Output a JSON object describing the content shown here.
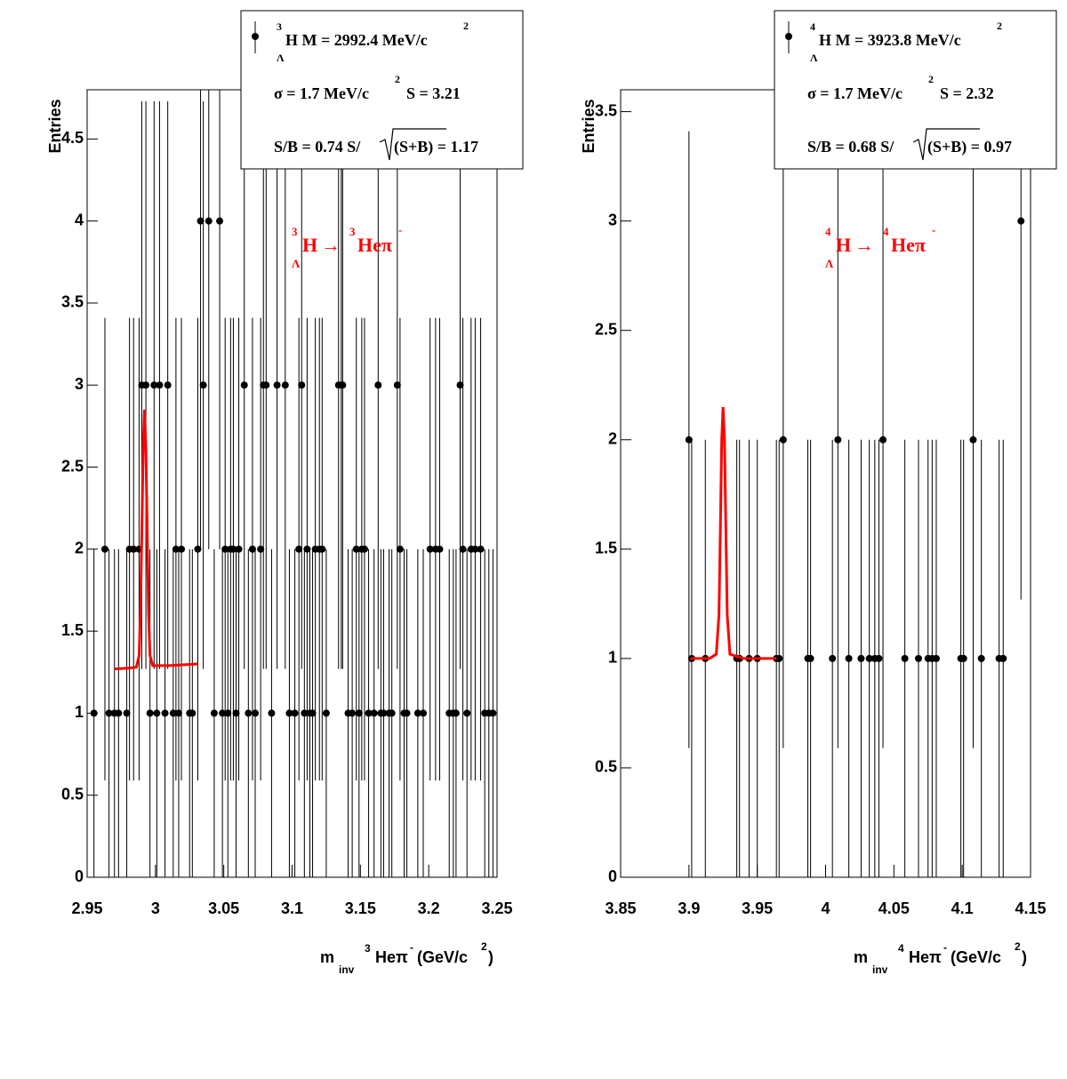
{
  "chart_data": [
    {
      "type": "errorbar",
      "ylabel": "Entries",
      "xlabel": [
        "m",
        "inv",
        "3",
        "Heπ",
        "-",
        "(GeV/c",
        "2",
        ")"
      ],
      "legend": [
        [
          "3",
          "H M = 2992.4 MeV/c",
          "2",
          "Λ"
        ],
        [
          "σ = 1.7 MeV/c",
          "2",
          "S = 3.21"
        ],
        [
          "S/B = 0.74  S/",
          "(S+B) = 1.17"
        ]
      ],
      "annotation": [
        "3",
        "H",
        "Λ",
        "→",
        "3",
        "Heπ",
        "-"
      ],
      "xlim": [
        2.95,
        3.25
      ],
      "ylim": [
        0,
        4.8
      ],
      "xticks": [
        2.95,
        3,
        3.05,
        3.1,
        3.15,
        3.2,
        3.25
      ],
      "yticks": [
        0,
        0.5,
        1,
        1.5,
        2,
        2.5,
        3,
        3.5,
        4,
        4.5
      ],
      "color": "#000000",
      "x": [
        2.955,
        2.963,
        2.966,
        2.97,
        2.973,
        2.979,
        2.981,
        2.984,
        2.988,
        2.99,
        2.993,
        2.996,
        2.999,
        3.001,
        3.003,
        3.007,
        3.009,
        3.013,
        3.015,
        3.017,
        3.019,
        3.025,
        3.027,
        3.031,
        3.033,
        3.035,
        3.039,
        3.043,
        3.047,
        3.049,
        3.051,
        3.053,
        3.055,
        3.057,
        3.059,
        3.061,
        3.065,
        3.068,
        3.071,
        3.073,
        3.077,
        3.079,
        3.081,
        3.085,
        3.089,
        3.095,
        3.098,
        3.102,
        3.105,
        3.107,
        3.109,
        3.111,
        3.113,
        3.115,
        3.117,
        3.12,
        3.122,
        3.125,
        3.134,
        3.136,
        3.137,
        3.141,
        3.144,
        3.147,
        3.149,
        3.151,
        3.153,
        3.156,
        3.16,
        3.163,
        3.165,
        3.167,
        3.171,
        3.173,
        3.177,
        3.179,
        3.182,
        3.184,
        3.192,
        3.196,
        3.201,
        3.205,
        3.208,
        3.215,
        3.218,
        3.22,
        3.223,
        3.225,
        3.228,
        3.231,
        3.234,
        3.238,
        3.241,
        3.244,
        3.247
      ],
      "values": [
        1,
        2,
        1,
        1,
        1,
        1,
        2,
        2,
        2,
        3,
        3,
        1,
        3,
        1,
        3,
        1,
        3,
        1,
        2,
        1,
        2,
        1,
        1,
        2,
        4,
        3,
        4,
        1,
        4,
        1,
        2,
        1,
        2,
        2,
        1,
        2,
        3,
        1,
        2,
        1,
        2,
        3,
        3,
        1,
        3,
        3,
        1,
        1,
        2,
        3,
        1,
        2,
        1,
        1,
        2,
        2,
        2,
        1,
        3,
        3,
        3,
        1,
        1,
        2,
        1,
        2,
        2,
        1,
        1,
        3,
        1,
        1,
        1,
        1,
        3,
        2,
        1,
        1,
        1,
        1,
        2,
        2,
        2,
        1,
        1,
        1,
        3,
        2,
        1,
        2,
        2,
        2,
        1,
        1,
        1
      ],
      "errors": [
        1,
        1.41,
        1,
        1,
        1,
        1,
        1.41,
        1.41,
        1.41,
        1.73,
        1.73,
        1,
        1.73,
        1,
        1.73,
        1,
        1.73,
        1,
        1.41,
        1,
        1.41,
        1,
        1,
        1.41,
        2,
        1.73,
        2,
        1,
        2,
        1,
        1.41,
        1,
        1.41,
        1.41,
        1,
        1.41,
        1.73,
        1,
        1.41,
        1,
        1.41,
        1.73,
        1.73,
        1,
        1.73,
        1.73,
        1,
        1,
        1.41,
        1.73,
        1,
        1.41,
        1,
        1,
        1.41,
        1.41,
        1.41,
        1,
        1.73,
        1.73,
        1.73,
        1,
        1,
        1.41,
        1,
        1.41,
        1.41,
        1,
        1,
        1.73,
        1,
        1,
        1,
        1,
        1.73,
        1.41,
        1,
        1,
        1,
        1,
        1.41,
        1.41,
        1.41,
        1,
        1,
        1,
        1.73,
        1.41,
        1,
        1.41,
        1.41,
        1.41,
        1,
        1,
        1
      ],
      "fit": {
        "color": "#ff0000",
        "x": [
          2.97,
          2.98,
          2.986,
          2.988,
          2.989,
          2.99,
          2.991,
          2.992,
          2.993,
          2.994,
          2.995,
          2.996,
          2.998,
          3.01,
          3.031
        ],
        "values": [
          1.27,
          1.275,
          1.28,
          1.35,
          1.6,
          2.1,
          2.6,
          2.85,
          2.6,
          2.1,
          1.6,
          1.35,
          1.29,
          1.29,
          1.3
        ]
      }
    },
    {
      "type": "errorbar",
      "ylabel": "Entries",
      "xlabel": [
        "m",
        "inv",
        "4",
        "Heπ",
        "-",
        "(GeV/c",
        "2",
        ")"
      ],
      "legend": [
        [
          "4",
          "H M = 3923.8 MeV/c",
          "2",
          "Λ"
        ],
        [
          "σ = 1.7 MeV/c",
          "2",
          "S = 2.32"
        ],
        [
          "S/B = 0.68  S/",
          "(S+B) = 0.97"
        ]
      ],
      "annotation": [
        "4",
        "H",
        "Λ",
        "→",
        "4",
        "Heπ",
        "-"
      ],
      "xlim": [
        3.85,
        4.15
      ],
      "ylim": [
        0,
        3.6
      ],
      "xticks": [
        3.85,
        3.9,
        3.95,
        4,
        4.05,
        4.1,
        4.15
      ],
      "yticks": [
        0,
        0.5,
        1,
        1.5,
        2,
        2.5,
        3,
        3.5
      ],
      "color": "#000000",
      "x": [
        3.9,
        3.902,
        3.912,
        3.935,
        3.937,
        3.944,
        3.95,
        3.964,
        3.966,
        3.969,
        3.987,
        3.989,
        4.005,
        4.009,
        4.017,
        4.026,
        4.032,
        4.036,
        4.039,
        4.042,
        4.058,
        4.068,
        4.075,
        4.078,
        4.081,
        4.099,
        4.101,
        4.108,
        4.114,
        4.127,
        4.13,
        4.143
      ],
      "values": [
        2,
        1,
        1,
        1,
        1,
        1,
        1,
        1,
        1,
        2,
        1,
        1,
        1,
        2,
        1,
        1,
        1,
        1,
        1,
        2,
        1,
        1,
        1,
        1,
        1,
        1,
        1,
        2,
        1,
        1,
        1,
        3
      ],
      "errors": [
        1.41,
        1,
        1,
        1,
        1,
        1,
        1,
        1,
        1,
        1.41,
        1,
        1,
        1,
        1.41,
        1,
        1,
        1,
        1,
        1,
        1.41,
        1,
        1,
        1,
        1,
        1,
        1,
        1,
        1.41,
        1,
        1,
        1,
        1.73
      ],
      "fit": {
        "color": "#ff0000",
        "x": [
          3.901,
          3.915,
          3.92,
          3.922,
          3.923,
          3.924,
          3.925,
          3.926,
          3.927,
          3.928,
          3.93,
          3.94,
          3.964
        ],
        "values": [
          1.0,
          1.0,
          1.02,
          1.2,
          1.6,
          2.0,
          2.15,
          2.0,
          1.6,
          1.2,
          1.02,
          1.0,
          1.0
        ]
      }
    }
  ]
}
